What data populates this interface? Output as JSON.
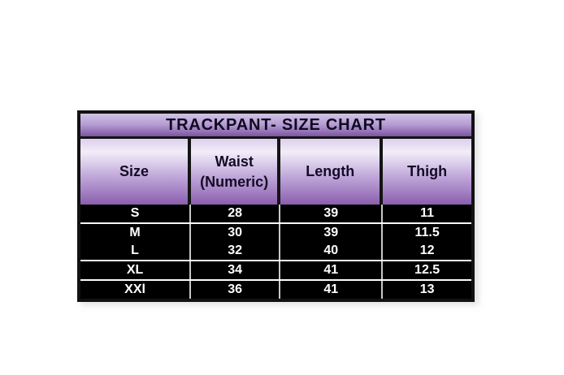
{
  "chart_data": {
    "type": "table",
    "title": "TRACKPANT- SIZE CHART",
    "columns": [
      "Size",
      "Waist (Numeric)",
      "Length",
      "Thigh"
    ],
    "rows": [
      [
        "S",
        "28",
        "39",
        "11"
      ],
      [
        "M",
        "30",
        "39",
        "11.5"
      ],
      [
        "L",
        "32",
        "40",
        "12"
      ],
      [
        "XL",
        "34",
        "41",
        "12.5"
      ],
      [
        "XXl",
        "36",
        "41",
        "13"
      ]
    ],
    "layout_hints": {
      "title_background": "purple vertical gradient",
      "header_background": "purple vertical gradient",
      "body_background": "black",
      "body_text_color": "#ffffff"
    },
    "colors": {
      "border_black": "#121212",
      "title_gradient_top": "#d2c3e6",
      "title_gradient_bottom": "#7c55a2",
      "header_gradient_light": "#f2edf9",
      "header_gradient_bottom": "#8a5fae",
      "row_background": "#000000",
      "row_text": "#ffffff",
      "separator_white": "#fcfcfc"
    }
  }
}
